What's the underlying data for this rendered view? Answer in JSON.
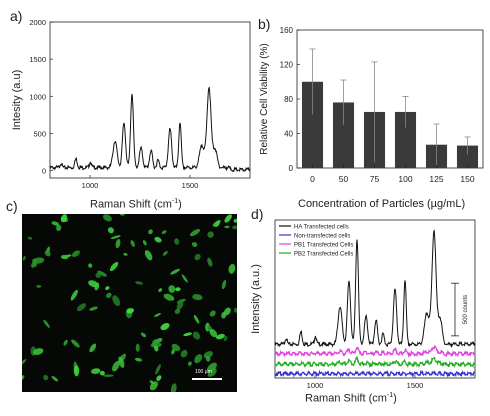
{
  "panels": {
    "a": {
      "letter": "a)",
      "ylabel": "Intesity (a.u)",
      "xlabel_main": "Raman Shift (cm",
      "xlabel_sup": "-1",
      "xlabel_end": ")"
    },
    "b": {
      "letter": "b)",
      "ylabel": "Relative Cell Viability (%)",
      "xlabel": "Concentration of Particles (µg/mL)"
    },
    "c": {
      "letter": "c)",
      "scale_bar": "100 µm"
    },
    "d": {
      "letter": "d)",
      "ylabel": "Intensity (a.u.)",
      "xlabel_main": "Raman Shift (cm",
      "xlabel_sup": "-1",
      "xlabel_end": ")",
      "scale_label": "500 counts"
    }
  },
  "colors": {
    "bar_fill": "#3a3a3a",
    "axis": "#222222",
    "cell_green": "#3fbf3f",
    "background_dark": "#050805"
  },
  "chart_data": [
    {
      "id": "a",
      "type": "line",
      "xlabel": "Raman Shift (cm-1)",
      "ylabel": "Intesity (a.u)",
      "xlim": [
        800,
        1800
      ],
      "ylim": [
        -100,
        2000
      ],
      "xticks": [
        1000,
        1500
      ],
      "yticks": [
        0,
        500,
        1000,
        1500,
        2000
      ],
      "peaks": [
        {
          "x": 855,
          "y": 60,
          "w": 5
        },
        {
          "x": 930,
          "y": 120,
          "w": 6
        },
        {
          "x": 1002,
          "y": 80,
          "w": 5
        },
        {
          "x": 1125,
          "y": 360,
          "w": 10
        },
        {
          "x": 1170,
          "y": 600,
          "w": 8
        },
        {
          "x": 1210,
          "y": 1000,
          "w": 7
        },
        {
          "x": 1255,
          "y": 260,
          "w": 8
        },
        {
          "x": 1305,
          "y": 230,
          "w": 7
        },
        {
          "x": 1340,
          "y": 100,
          "w": 6
        },
        {
          "x": 1400,
          "y": 520,
          "w": 8
        },
        {
          "x": 1450,
          "y": 620,
          "w": 6
        },
        {
          "x": 1560,
          "y": 300,
          "w": 12
        },
        {
          "x": 1595,
          "y": 1080,
          "w": 10
        },
        {
          "x": 1625,
          "y": 250,
          "w": 10
        }
      ]
    },
    {
      "id": "b",
      "type": "bar",
      "xlabel": "Concentration of Particles (µg/mL)",
      "ylabel": "Relative Cell Viability (%)",
      "categories": [
        "0",
        "50",
        "75",
        "100",
        "125",
        "150"
      ],
      "values": [
        100,
        76,
        65,
        65,
        27,
        26
      ],
      "errors": [
        38,
        26,
        58,
        18,
        24,
        10
      ],
      "ylim": [
        0,
        160
      ],
      "yticks": [
        0,
        40,
        80,
        120,
        160
      ]
    },
    {
      "id": "d",
      "type": "line",
      "xlabel": "Raman Shift (cm-1)",
      "ylabel": "Intensity (a.u.)",
      "xlim": [
        800,
        1800
      ],
      "xticks": [
        1000,
        1500
      ],
      "scale_bar_counts": 500,
      "series": [
        {
          "name": "HA Transfected cells",
          "color": "#111111",
          "baseline": 320,
          "scale": 1.0
        },
        {
          "name": "Non-transfected cells",
          "color": "#3333cc",
          "baseline": 40,
          "scale": 0.0
        },
        {
          "name": "PB1 Transfected Cells",
          "color": "#e040e0",
          "baseline": 230,
          "scale": 0.06
        },
        {
          "name": "PB2 Transfected Cells",
          "color": "#22aa22",
          "baseline": 130,
          "scale": 0.05
        }
      ]
    }
  ]
}
